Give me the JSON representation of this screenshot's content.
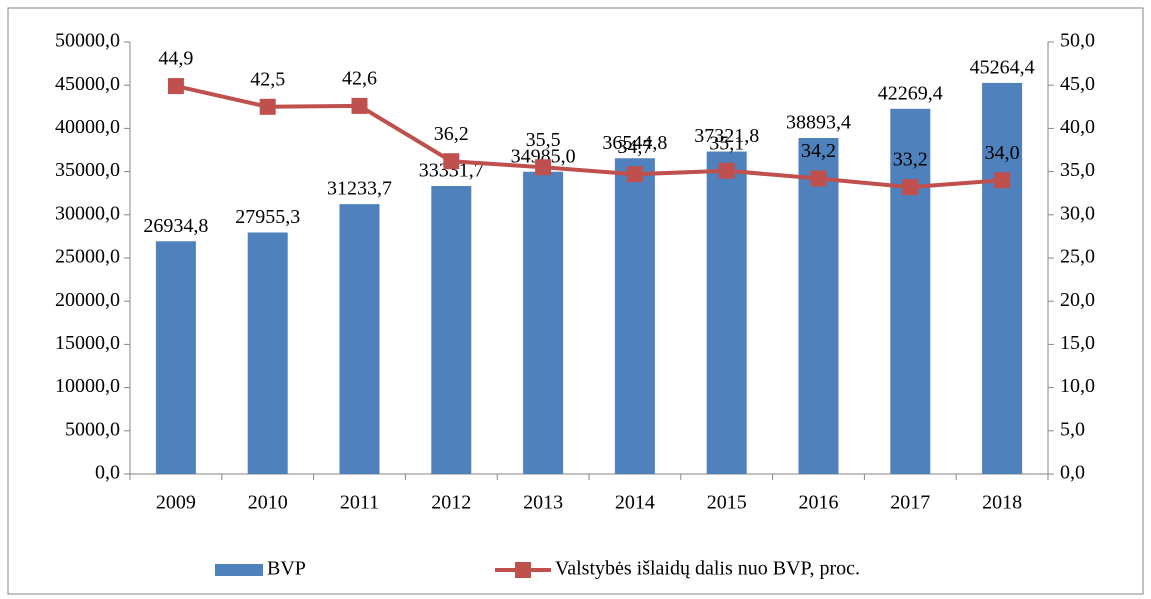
{
  "chart_data": {
    "type": "combo",
    "categories": [
      "2009",
      "2010",
      "2011",
      "2012",
      "2013",
      "2014",
      "2015",
      "2016",
      "2017",
      "2018"
    ],
    "series": [
      {
        "name": "BVP",
        "type": "bar",
        "color": "#4f81bd",
        "values": [
          26934.8,
          27955.3,
          31233.7,
          33331.7,
          34985.0,
          36544.8,
          37321.8,
          38893.4,
          42269.4,
          45264.4
        ],
        "value_labels": [
          "26934,8",
          "27955,3",
          "31233,7",
          "33331,7",
          "34985,0",
          "36544,8",
          "37321,8",
          "38893,4",
          "42269,4",
          "45264,4"
        ]
      },
      {
        "name": "Valstybės išlaidų dalis nuo BVP, proc.",
        "type": "line",
        "axis": "y2",
        "color": "#c0504d",
        "values": [
          44.9,
          42.5,
          42.6,
          36.2,
          35.5,
          34.7,
          35.1,
          34.2,
          33.2,
          34.0
        ],
        "value_labels": [
          "44,9",
          "42,5",
          "42,6",
          "36,2",
          "35,5",
          "34,7",
          "35,1",
          "34,2",
          "33,2",
          "34,0"
        ]
      }
    ],
    "ylim": [
      0,
      50000
    ],
    "yticks": [
      {
        "value": 0,
        "label": "0,0"
      },
      {
        "value": 5000,
        "label": "5000,0"
      },
      {
        "value": 10000,
        "label": "10000,0"
      },
      {
        "value": 15000,
        "label": "15000,0"
      },
      {
        "value": 20000,
        "label": "20000,0"
      },
      {
        "value": 25000,
        "label": "25000,0"
      },
      {
        "value": 30000,
        "label": "30000,0"
      },
      {
        "value": 35000,
        "label": "35000,0"
      },
      {
        "value": 40000,
        "label": "40000,0"
      },
      {
        "value": 45000,
        "label": "45000,0"
      },
      {
        "value": 50000,
        "label": "50000,0"
      }
    ],
    "y2lim": [
      0,
      50
    ],
    "y2ticks": [
      {
        "value": 0,
        "label": "0,0"
      },
      {
        "value": 5,
        "label": "5,0"
      },
      {
        "value": 10,
        "label": "10,0"
      },
      {
        "value": 15,
        "label": "15,0"
      },
      {
        "value": 20,
        "label": "20,0"
      },
      {
        "value": 25,
        "label": "25,0"
      },
      {
        "value": 30,
        "label": "30,0"
      },
      {
        "value": 35,
        "label": "35,0"
      },
      {
        "value": 40,
        "label": "40,0"
      },
      {
        "value": 45,
        "label": "45,0"
      },
      {
        "value": 50,
        "label": "50,0"
      }
    ],
    "grid": false,
    "legend": "bottom"
  }
}
